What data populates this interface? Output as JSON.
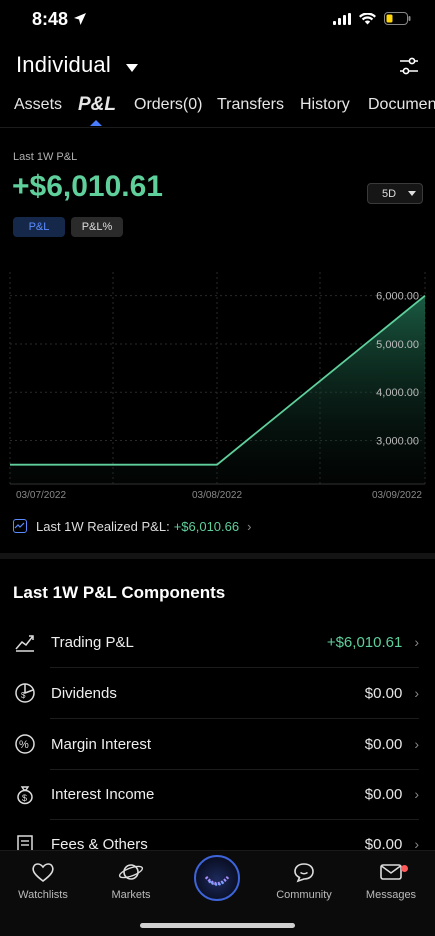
{
  "status": {
    "time": "8:48"
  },
  "header": {
    "account_title": "Individual"
  },
  "tabs": [
    {
      "label": "Assets"
    },
    {
      "label": "P&L"
    },
    {
      "label": "Orders(0)"
    },
    {
      "label": "Transfers"
    },
    {
      "label": "History"
    },
    {
      "label": "Documen"
    }
  ],
  "pl": {
    "label": "Last 1W P&L",
    "value": "+$6,010.61",
    "period": "5D",
    "chips": [
      "P&L",
      "P&L%"
    ]
  },
  "chart_data": {
    "type": "line",
    "x": [
      "03/07/2022",
      "03/07/2022",
      "03/08/2022",
      "03/09/2022"
    ],
    "values": [
      2500,
      2500,
      2500,
      6000
    ],
    "y_ticks": [
      "6,000.00",
      "5,000.00",
      "4,000.00",
      "3,000.00"
    ],
    "x_ticks": [
      "03/07/2022",
      "03/08/2022",
      "03/09/2022"
    ],
    "ylim": [
      2100,
      6200
    ],
    "grid": true,
    "color": "#5fcf9b"
  },
  "realized": {
    "label": "Last 1W Realized P&L:",
    "value": "+$6,010.66"
  },
  "components": {
    "title": "Last 1W P&L Components",
    "rows": [
      {
        "label": "Trading P&L",
        "value": "+$6,010.61",
        "icon": "trading-chart-icon"
      },
      {
        "label": "Dividends",
        "value": "$0.00",
        "icon": "dividends-icon"
      },
      {
        "label": "Margin Interest",
        "value": "$0.00",
        "icon": "percent-icon"
      },
      {
        "label": "Interest Income",
        "value": "$0.00",
        "icon": "money-bag-icon"
      },
      {
        "label": "Fees & Others",
        "value": "$0.00",
        "icon": "receipt-icon"
      }
    ]
  },
  "nav": {
    "items": [
      {
        "label": "Watchlists"
      },
      {
        "label": "Markets"
      },
      {
        "label": ""
      },
      {
        "label": "Community"
      },
      {
        "label": "Messages"
      }
    ]
  },
  "colors": {
    "positive": "#5fcf9b",
    "accent": "#4a7cff",
    "background": "#000000"
  }
}
